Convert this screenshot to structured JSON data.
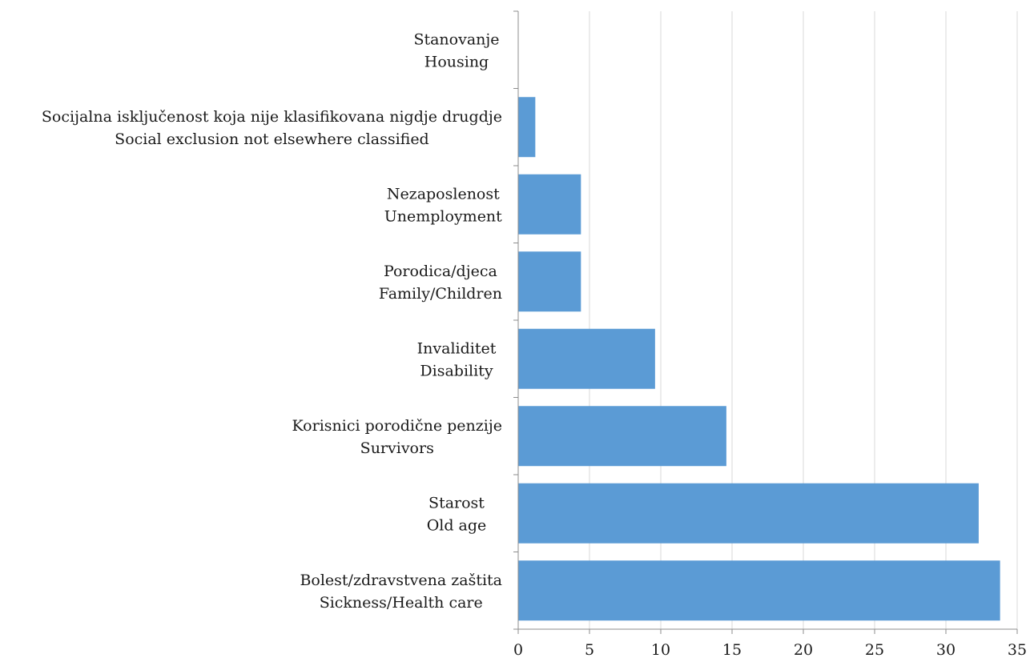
{
  "chart_data": {
    "type": "bar",
    "orientation": "horizontal",
    "categories": [
      [
        "Stanovanje",
        "Housing"
      ],
      [
        "Socijalna isključenost koja nije klasifikovana nigdje drugdje",
        "Social exclusion not elsewhere classified"
      ],
      [
        "Nezaposlenost",
        "Unemployment"
      ],
      [
        "Porodica/djeca",
        "Family/Children"
      ],
      [
        "Invaliditet",
        "Disability"
      ],
      [
        "Korisnici porodične penzije",
        "Survivors"
      ],
      [
        "Starost",
        "Old age"
      ],
      [
        "Bolest/zdravstvena zaštita",
        "Sickness/Health care"
      ]
    ],
    "values": [
      0,
      1.2,
      4.4,
      4.4,
      9.6,
      14.6,
      32.3,
      33.8
    ],
    "xlim": [
      0,
      35
    ],
    "xticks": [
      "0",
      "5",
      "10",
      "15",
      "20",
      "25",
      "30",
      "35"
    ],
    "grid": true,
    "colors": {
      "bar": "#5b9bd5",
      "grid": "#d9d9d9",
      "axis": "#8c8c8c"
    }
  }
}
